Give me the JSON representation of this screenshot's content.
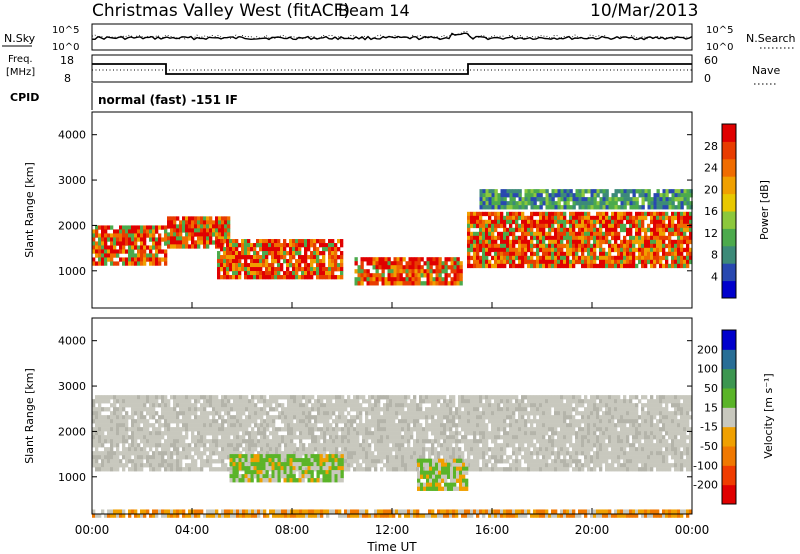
{
  "header": {
    "station": "Christmas Valley West (fitACF)",
    "beam": "Beam 14",
    "date": "10/Mar/2013"
  },
  "top_panels": {
    "nsky_label": "N.Sky",
    "nsearch_label": "N.Search",
    "noise_ticks": [
      "10^5",
      "10^0"
    ],
    "freq_label_1": "Freq.",
    "freq_label_2": "[MHz]",
    "freq_ticks": [
      "18",
      "8"
    ],
    "nave_label": "Nave",
    "nave_ticks": [
      "60",
      "0"
    ],
    "cpid_label": "CPID",
    "cpid_text": "normal (fast) -151 IF"
  },
  "chart_data": [
    {
      "type": "heatmap",
      "ylabel": "Slant Range [km]",
      "ylim": [
        180,
        4500
      ],
      "yticks": [
        "4000",
        "3000",
        "2000",
        "1000"
      ],
      "colorbar": {
        "label": "Power [dB]",
        "ticks": [
          "28",
          "24",
          "20",
          "16",
          "12",
          "8",
          "4"
        ],
        "colors": [
          "#0000cc",
          "#2848b0",
          "#3c8a78",
          "#4caa4c",
          "#8cc83c",
          "#e8c800",
          "#f0a000",
          "#f06c00",
          "#e83c00",
          "#e00000"
        ]
      },
      "echo_regions": [
        {
          "t_start": 0.0,
          "t_end": 3.0,
          "range_min": 1200,
          "range_max": 2000,
          "level": "strong"
        },
        {
          "t_start": 3.0,
          "t_end": 5.5,
          "range_min": 1500,
          "range_max": 2200,
          "level": "strong"
        },
        {
          "t_start": 5.0,
          "t_end": 10.0,
          "range_min": 900,
          "range_max": 1700,
          "level": "strong"
        },
        {
          "t_start": 10.5,
          "t_end": 14.8,
          "range_min": 700,
          "range_max": 1300,
          "level": "strong"
        },
        {
          "t_start": 15.0,
          "t_end": 24.0,
          "range_min": 1100,
          "range_max": 2300,
          "level": "strong"
        },
        {
          "t_start": 15.5,
          "t_end": 24.0,
          "range_min": 2400,
          "range_max": 2800,
          "level": "weak"
        }
      ]
    },
    {
      "type": "heatmap",
      "xlabel": "Time UT",
      "ylabel": "Slant Range [km]",
      "ylim": [
        180,
        4500
      ],
      "yticks": [
        "4000",
        "3000",
        "2000",
        "1000"
      ],
      "xticks": [
        "00:00",
        "04:00",
        "08:00",
        "12:00",
        "16:00",
        "20:00",
        "00:00"
      ],
      "colorbar": {
        "label": "Velocity [m s⁻¹]",
        "ticks": [
          "200",
          "100",
          "50",
          "15",
          "-15",
          "-50",
          "-100",
          "-200"
        ],
        "colors": [
          "#e00000",
          "#f03c00",
          "#f07800",
          "#f0a000",
          "#c8c8be",
          "#5ab428",
          "#3c9650",
          "#286e96",
          "#0000cc"
        ]
      },
      "echo_regions": [
        {
          "t_start": 0.0,
          "t_end": 24.0,
          "range_min": 1200,
          "range_max": 2800,
          "velocity": "ground scatter (~0)"
        },
        {
          "t_start": 5.5,
          "t_end": 10.0,
          "range_min": 900,
          "range_max": 1500,
          "velocity": "+50 to +100"
        },
        {
          "t_start": 13.0,
          "t_end": 15.0,
          "range_min": 700,
          "range_max": 1400,
          "velocity": "+50"
        },
        {
          "t_start": 0.0,
          "t_end": 24.0,
          "range_min": 180,
          "range_max": 280,
          "velocity": "-15 to -50"
        }
      ]
    }
  ],
  "colors": {
    "frame": "#000000",
    "ground_scatter": "#c8c8be",
    "power_strong": "#e00000",
    "power_weak": "#2848b0"
  }
}
